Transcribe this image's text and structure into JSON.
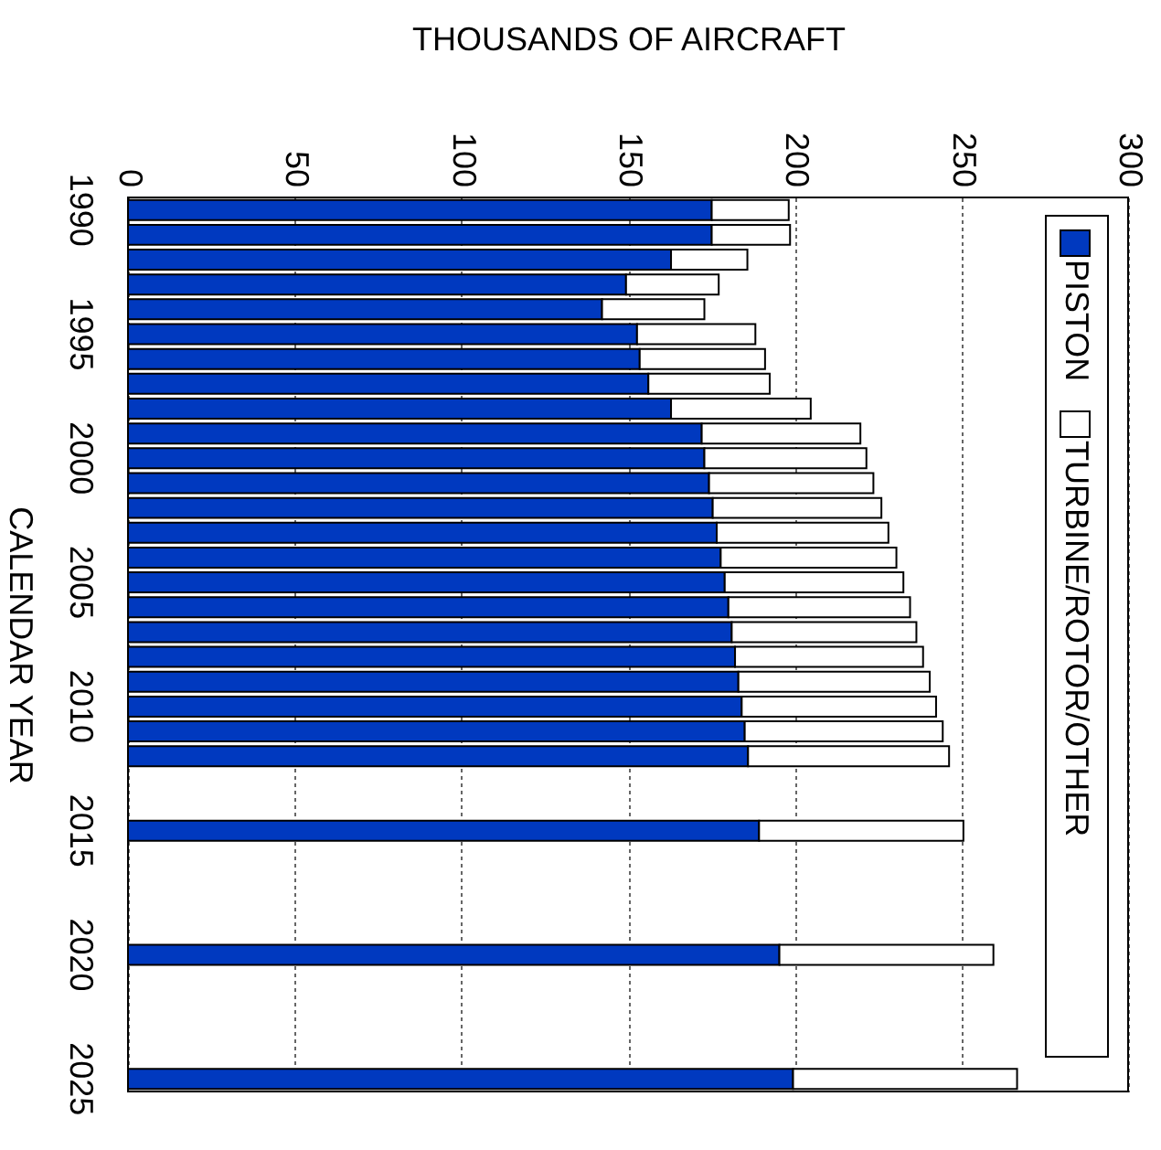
{
  "chart_data": {
    "type": "bar",
    "orientation": "horizontal",
    "stacked": true,
    "xlabel": "THOUSANDS OF AIRCRAFT",
    "ylabel": "CALENDAR YEAR",
    "categories": [
      "1990",
      null,
      null,
      null,
      null,
      "1995",
      null,
      null,
      null,
      null,
      "2000",
      null,
      null,
      null,
      null,
      "2005",
      null,
      null,
      null,
      null,
      "2010",
      null,
      null,
      null,
      null,
      "2015",
      null,
      null,
      null,
      null,
      "2020",
      null,
      null,
      null,
      null,
      "2025"
    ],
    "series": [
      {
        "name": "PISTON",
        "color": "#0039bf",
        "values": [
          175.1,
          175.1,
          162.9,
          149.4,
          142.2,
          152.7,
          153.5,
          156.1,
          162.9,
          172.1,
          172.9,
          174.3,
          175.4,
          176.6,
          177.8,
          179.0,
          180.1,
          181.1,
          182.1,
          183.1,
          184.1,
          185.0,
          186.0,
          null,
          null,
          189.3,
          null,
          null,
          null,
          null,
          195.4,
          null,
          null,
          null,
          null,
          199.5
        ]
      },
      {
        "name": "TURBINE/ROTOR/OTHER",
        "color": "#ffffff",
        "values": [
          23.1,
          23.5,
          22.9,
          27.8,
          30.7,
          35.5,
          37.6,
          36.4,
          41.9,
          47.6,
          48.6,
          49.3,
          50.6,
          51.5,
          52.7,
          53.6,
          54.5,
          55.4,
          56.4,
          57.4,
          58.3,
          59.4,
          60.3,
          null,
          null,
          61.3,
          null,
          null,
          null,
          null,
          64.2,
          null,
          null,
          null,
          null,
          67.2
        ]
      }
    ],
    "xlim": [
      0,
      300
    ],
    "xticks": [
      0,
      50,
      100,
      150,
      200,
      250,
      300
    ],
    "grid": "x",
    "legend": "right"
  }
}
